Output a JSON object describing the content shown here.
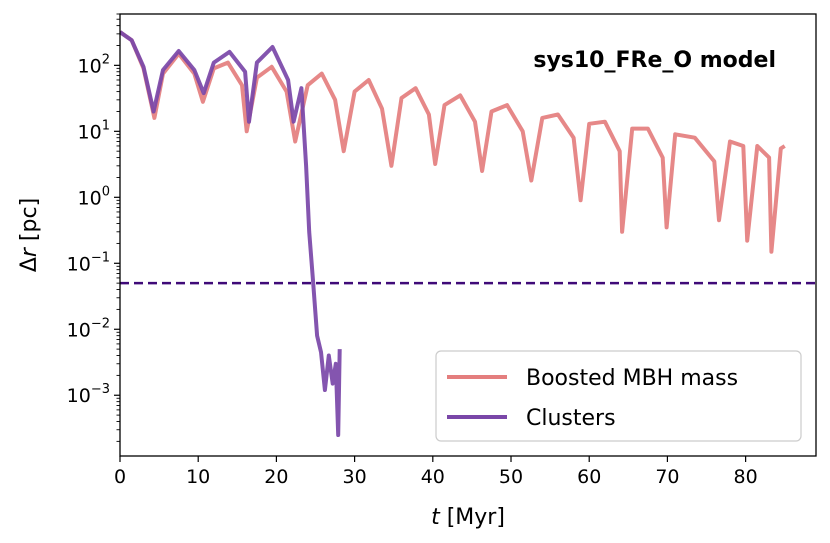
{
  "chart_data": {
    "type": "line",
    "title": "sys10_FRe_O model",
    "xlabel": "t [Myr]",
    "ylabel": "Δr [pc]",
    "x_scale": "linear",
    "y_scale": "log",
    "xlim": [
      0,
      89
    ],
    "ylim": [
      0.00012,
      600
    ],
    "x_ticks": [
      0,
      10,
      20,
      30,
      40,
      50,
      60,
      70,
      80
    ],
    "y_ticks": [
      {
        "value": 0.001,
        "base": "10",
        "exp": "−3"
      },
      {
        "value": 0.01,
        "base": "10",
        "exp": "−2"
      },
      {
        "value": 0.1,
        "base": "10",
        "exp": "−1"
      },
      {
        "value": 1,
        "base": "10",
        "exp": "0"
      },
      {
        "value": 10,
        "base": "10",
        "exp": "1"
      },
      {
        "value": 100,
        "base": "10",
        "exp": "2"
      }
    ],
    "grid": false,
    "legend_position": "lower-right",
    "reference_line": {
      "y": 0.05,
      "style": "dashed",
      "color": "#3f0a78"
    },
    "series": [
      {
        "name": "Boosted MBH mass",
        "color": "#e47e7e",
        "x": [
          0,
          1.5,
          3,
          4.4,
          5.5,
          7.5,
          9.5,
          10.6,
          12,
          13.8,
          15.6,
          16.2,
          17.5,
          19.4,
          21.3,
          22.4,
          24,
          25.8,
          27.5,
          28.6,
          30,
          31.8,
          33.5,
          34.7,
          36,
          37.8,
          39.5,
          40.3,
          41.5,
          43.5,
          45.4,
          46.3,
          47.5,
          49.5,
          51.5,
          52.6,
          54,
          56,
          58,
          58.9,
          60,
          62,
          63.9,
          64.2,
          65.5,
          67.5,
          69.4,
          69.9,
          71,
          73.5,
          76,
          76.6,
          78,
          79.7,
          80.2,
          81.5,
          83,
          83.3,
          84.5,
          85
        ],
        "y": [
          320,
          240,
          90,
          16,
          75,
          150,
          75,
          28,
          90,
          110,
          50,
          10,
          65,
          95,
          40,
          7,
          50,
          75,
          30,
          5,
          40,
          60,
          22,
          3,
          32,
          45,
          18,
          3.2,
          25,
          35,
          14,
          2.5,
          20,
          25,
          10,
          1.8,
          16,
          18,
          8,
          0.9,
          13,
          14,
          5,
          0.3,
          11,
          11,
          4,
          0.35,
          9,
          8,
          3.5,
          0.45,
          7,
          6,
          0.22,
          6,
          4,
          0.15,
          5.5,
          6
        ]
      },
      {
        "name": "Clusters",
        "color": "#7a47a8",
        "x": [
          0,
          1.5,
          3,
          4.3,
          5.5,
          7.5,
          9.5,
          10.7,
          12,
          14,
          16,
          16.5,
          17.5,
          19.5,
          21.5,
          22.2,
          23.2,
          23.8,
          24.2,
          24.7,
          25.2,
          25.7,
          26.2,
          26.7,
          27.2,
          27.6,
          27.9,
          28.1
        ],
        "y": [
          320,
          240,
          95,
          20,
          85,
          165,
          85,
          38,
          110,
          160,
          80,
          14,
          110,
          190,
          60,
          14,
          45,
          3,
          0.3,
          0.05,
          0.008,
          0.0045,
          0.0012,
          0.004,
          0.0015,
          0.003,
          0.00025,
          0.005
        ]
      }
    ]
  }
}
